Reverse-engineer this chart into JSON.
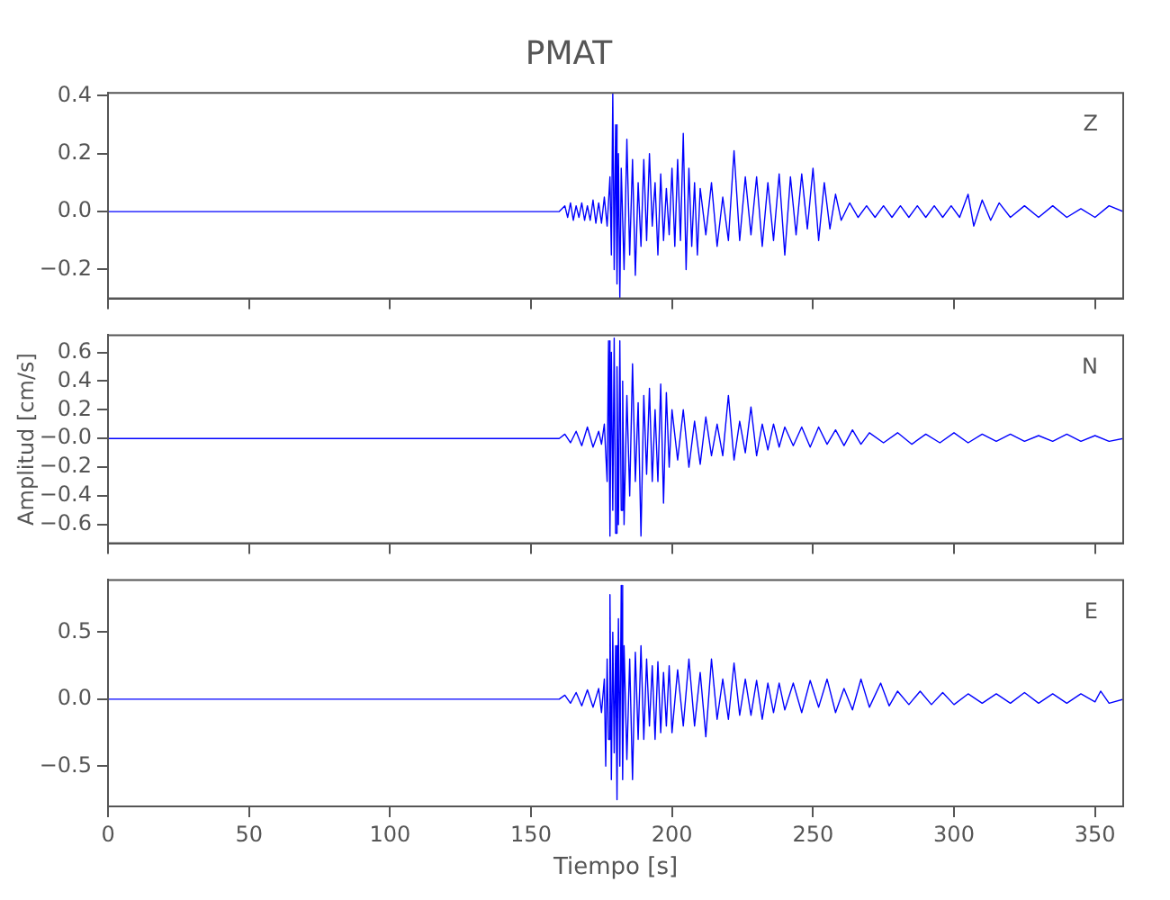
{
  "chart_data": [
    {
      "type": "line",
      "title": "PMAT",
      "annotations": [
        "Z"
      ],
      "tick_labels": "y",
      "marker": "none",
      "xlim": [
        0,
        360
      ],
      "xticks": [
        0,
        50,
        100,
        150,
        200,
        250,
        300,
        350
      ],
      "ylim": [
        -0.3,
        0.41
      ],
      "yticks": [
        {
          "value": -0.2,
          "label": "−0.2"
        },
        {
          "value": 0,
          "label": "0.0"
        },
        {
          "value": 0.2,
          "label": "0.2"
        },
        {
          "value": 0.4,
          "label": "0.4"
        }
      ],
      "series": [
        {
          "color": "#0000ff",
          "x": [
            0,
            160,
            162,
            163,
            164,
            165,
            166,
            167,
            168,
            169,
            170,
            171,
            172,
            173,
            174,
            175,
            176,
            177,
            178,
            178.5,
            179,
            179.5,
            180,
            180.5,
            181,
            181.5,
            182,
            183,
            184,
            185,
            186,
            187,
            188,
            189,
            190,
            191,
            192,
            193,
            194,
            195,
            196,
            197,
            198,
            199,
            200,
            201,
            202,
            203,
            204,
            205,
            206,
            207,
            208,
            209,
            210,
            212,
            214,
            216,
            218,
            220,
            222,
            224,
            226,
            228,
            230,
            232,
            234,
            236,
            238,
            240,
            242,
            244,
            246,
            248,
            250,
            252,
            254,
            256,
            258,
            260,
            263,
            266,
            269,
            272,
            275,
            278,
            281,
            284,
            287,
            290,
            293,
            296,
            299,
            302,
            305,
            307,
            310,
            313,
            316,
            320,
            325,
            330,
            335,
            340,
            345,
            350,
            355,
            360
          ],
          "values": [
            0,
            0,
            0.02,
            -0.02,
            0.03,
            -0.03,
            0.02,
            -0.02,
            0.03,
            -0.03,
            0.02,
            -0.03,
            0.04,
            -0.04,
            0.03,
            -0.04,
            0.05,
            -0.05,
            0.12,
            -0.15,
            0.41,
            -0.2,
            0.3,
            -0.25,
            0.2,
            -0.3,
            0.15,
            -0.2,
            0.25,
            -0.15,
            0.18,
            -0.22,
            0.1,
            -0.12,
            0.18,
            -0.1,
            0.2,
            -0.05,
            0.1,
            -0.15,
            0.13,
            -0.1,
            0.08,
            -0.08,
            0.15,
            -0.12,
            0.18,
            -0.1,
            0.27,
            -0.2,
            0.15,
            -0.12,
            0.1,
            -0.15,
            0.08,
            -0.08,
            0.1,
            -0.12,
            0.05,
            -0.1,
            0.21,
            -0.1,
            0.12,
            -0.08,
            0.12,
            -0.12,
            0.1,
            -0.1,
            0.13,
            -0.15,
            0.12,
            -0.08,
            0.13,
            -0.06,
            0.15,
            -0.1,
            0.1,
            -0.06,
            0.06,
            -0.03,
            0.03,
            -0.02,
            0.02,
            -0.02,
            0.02,
            -0.02,
            0.02,
            -0.02,
            0.02,
            -0.02,
            0.02,
            -0.02,
            0.02,
            -0.02,
            0.06,
            -0.05,
            0.04,
            -0.03,
            0.03,
            -0.02,
            0.02,
            -0.02,
            0.02,
            -0.02,
            0.01,
            -0.02,
            0.02,
            0
          ]
        }
      ]
    },
    {
      "type": "line",
      "ylabel": "Amplitud [cm/s]",
      "annotations": [
        "N"
      ],
      "tick_labels": "y",
      "marker": "none",
      "xlim": [
        0,
        360
      ],
      "xticks": [
        0,
        50,
        100,
        150,
        200,
        250,
        300,
        350
      ],
      "ylim": [
        -0.73,
        0.72
      ],
      "yticks": [
        {
          "value": -0.6,
          "label": "−0.6"
        },
        {
          "value": -0.4,
          "label": "−0.4"
        },
        {
          "value": -0.2,
          "label": "−0.2"
        },
        {
          "value": 0,
          "label": "−0.0"
        },
        {
          "value": 0.2,
          "label": "0.2"
        },
        {
          "value": 0.4,
          "label": "0.4"
        },
        {
          "value": 0.6,
          "label": "0.6"
        }
      ],
      "series": [
        {
          "color": "#0000ff",
          "x": [
            0,
            160,
            162,
            164,
            166,
            168,
            170,
            172,
            174,
            175,
            176,
            177,
            177.5,
            178,
            178.5,
            179,
            179.5,
            180,
            180.5,
            181,
            181.5,
            182,
            182.5,
            183,
            184,
            185,
            186,
            187,
            188,
            189,
            190,
            191,
            192,
            193,
            194,
            195,
            196,
            197,
            198,
            199,
            200,
            202,
            204,
            206,
            208,
            210,
            212,
            214,
            216,
            218,
            220,
            222,
            224,
            226,
            228,
            230,
            232,
            234,
            236,
            238,
            240,
            243,
            246,
            249,
            252,
            255,
            258,
            261,
            264,
            267,
            270,
            275,
            280,
            285,
            290,
            295,
            300,
            305,
            310,
            315,
            320,
            325,
            330,
            335,
            340,
            345,
            350,
            355,
            360
          ],
          "values": [
            0,
            0,
            0.03,
            -0.03,
            0.05,
            -0.05,
            0.08,
            -0.06,
            0.05,
            -0.04,
            0.1,
            -0.3,
            0.68,
            -0.68,
            0.6,
            -0.5,
            0.7,
            -0.66,
            0.5,
            -0.6,
            0.68,
            -0.5,
            0.4,
            -0.6,
            0.3,
            -0.4,
            0.52,
            -0.3,
            0.25,
            -0.68,
            0.3,
            -0.25,
            0.35,
            -0.3,
            0.2,
            -0.3,
            0.38,
            -0.45,
            0.32,
            -0.2,
            0.2,
            -0.15,
            0.2,
            -0.2,
            0.12,
            -0.18,
            0.15,
            -0.12,
            0.1,
            -0.12,
            0.3,
            -0.15,
            0.12,
            -0.1,
            0.22,
            -0.12,
            0.1,
            -0.08,
            0.1,
            -0.06,
            0.08,
            -0.05,
            0.08,
            -0.06,
            0.08,
            -0.04,
            0.06,
            -0.05,
            0.06,
            -0.04,
            0.04,
            -0.03,
            0.04,
            -0.04,
            0.03,
            -0.03,
            0.04,
            -0.03,
            0.03,
            -0.02,
            0.03,
            -0.02,
            0.02,
            -0.02,
            0.03,
            -0.02,
            0.02,
            -0.02,
            0
          ]
        }
      ]
    },
    {
      "type": "line",
      "xlabel": "Tiempo [s]",
      "annotations": [
        "E"
      ],
      "marker": "none",
      "xlim": [
        0,
        360
      ],
      "xticks": [
        0,
        50,
        100,
        150,
        200,
        250,
        300,
        350
      ],
      "ylim": [
        -0.8,
        0.89
      ],
      "yticks": [
        {
          "value": -0.5,
          "label": "−0.5"
        },
        {
          "value": 0,
          "label": "0.0"
        },
        {
          "value": 0.5,
          "label": "0.5"
        }
      ],
      "series": [
        {
          "color": "#0000ff",
          "x": [
            0,
            160,
            162,
            164,
            166,
            168,
            170,
            172,
            174,
            175,
            176,
            176.5,
            177,
            177.5,
            178,
            178.5,
            179,
            179.5,
            180,
            180.5,
            181,
            181.5,
            182,
            182.5,
            183,
            184,
            185,
            186,
            187,
            188,
            189,
            190,
            191,
            192,
            193,
            194,
            195,
            196,
            197,
            198,
            199,
            200,
            202,
            204,
            206,
            208,
            210,
            212,
            214,
            216,
            218,
            220,
            222,
            224,
            226,
            228,
            230,
            232,
            234,
            236,
            238,
            240,
            243,
            246,
            249,
            252,
            255,
            258,
            261,
            264,
            267,
            270,
            274,
            277,
            280,
            284,
            288,
            292,
            296,
            300,
            305,
            310,
            315,
            320,
            325,
            330,
            335,
            340,
            345,
            350,
            352,
            355,
            360
          ],
          "values": [
            0,
            0,
            0.03,
            -0.03,
            0.05,
            -0.05,
            0.07,
            -0.06,
            0.08,
            -0.1,
            0.15,
            -0.5,
            0.3,
            -0.3,
            0.78,
            -0.6,
            0.5,
            -0.4,
            0.4,
            -0.75,
            0.6,
            -0.5,
            0.85,
            -0.6,
            0.4,
            -0.45,
            0.3,
            -0.6,
            0.35,
            -0.3,
            0.4,
            -0.3,
            0.3,
            -0.2,
            0.25,
            -0.3,
            0.28,
            -0.25,
            0.2,
            -0.2,
            0.25,
            -0.25,
            0.22,
            -0.2,
            0.3,
            -0.2,
            0.2,
            -0.28,
            0.3,
            -0.15,
            0.15,
            -0.15,
            0.27,
            -0.12,
            0.15,
            -0.12,
            0.14,
            -0.15,
            0.12,
            -0.1,
            0.12,
            -0.08,
            0.12,
            -0.1,
            0.14,
            -0.06,
            0.15,
            -0.1,
            0.08,
            -0.08,
            0.15,
            -0.06,
            0.12,
            -0.05,
            0.06,
            -0.04,
            0.06,
            -0.04,
            0.05,
            -0.04,
            0.04,
            -0.03,
            0.04,
            -0.03,
            0.05,
            -0.03,
            0.04,
            -0.03,
            0.04,
            -0.02,
            0.06,
            -0.03,
            0
          ]
        }
      ]
    }
  ]
}
